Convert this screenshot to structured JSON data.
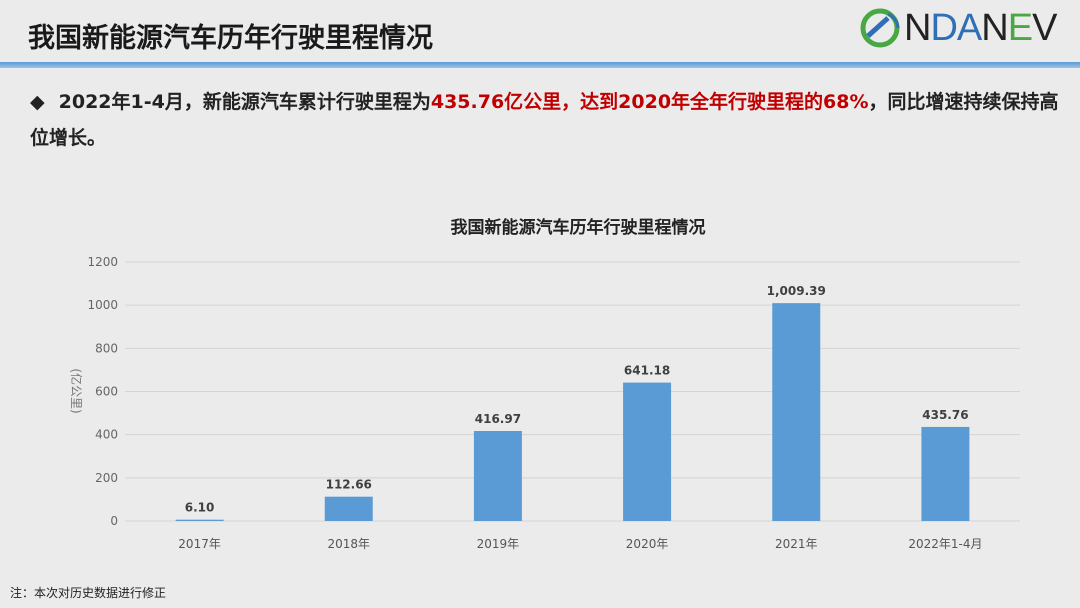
{
  "header": {
    "title": "我国新能源汽车历年行驶里程情况",
    "logo_text": "NDANEV"
  },
  "bullet": {
    "part1": "2022年1-4月，新能源汽车累计行驶里程为",
    "part2": "435.76亿公里，达到2020年全年行驶里程的68%",
    "part3": "，同比增速持续保持高位增长。"
  },
  "note": "注：本次对历史数据进行修正",
  "colors": {
    "bar": "#5b9bd5",
    "highlight": "#c00000",
    "accent": "#5b9bd5"
  },
  "chart_data": {
    "type": "bar",
    "title": "我国新能源汽车历年行驶里程情况",
    "ylabel": "(亿公里)",
    "categories": [
      "2017年",
      "2018年",
      "2019年",
      "2020年",
      "2021年",
      "2022年1-4月"
    ],
    "values": [
      6.1,
      112.66,
      416.97,
      641.18,
      1009.39,
      435.76
    ],
    "data_labels": [
      "6.10",
      "112.66",
      "416.97",
      "641.18",
      "1,009.39",
      "435.76"
    ],
    "ylim": [
      0,
      1200
    ],
    "yticks": [
      "0",
      "200",
      "400",
      "600",
      "800",
      "1000",
      "1200"
    ],
    "grid": true
  }
}
